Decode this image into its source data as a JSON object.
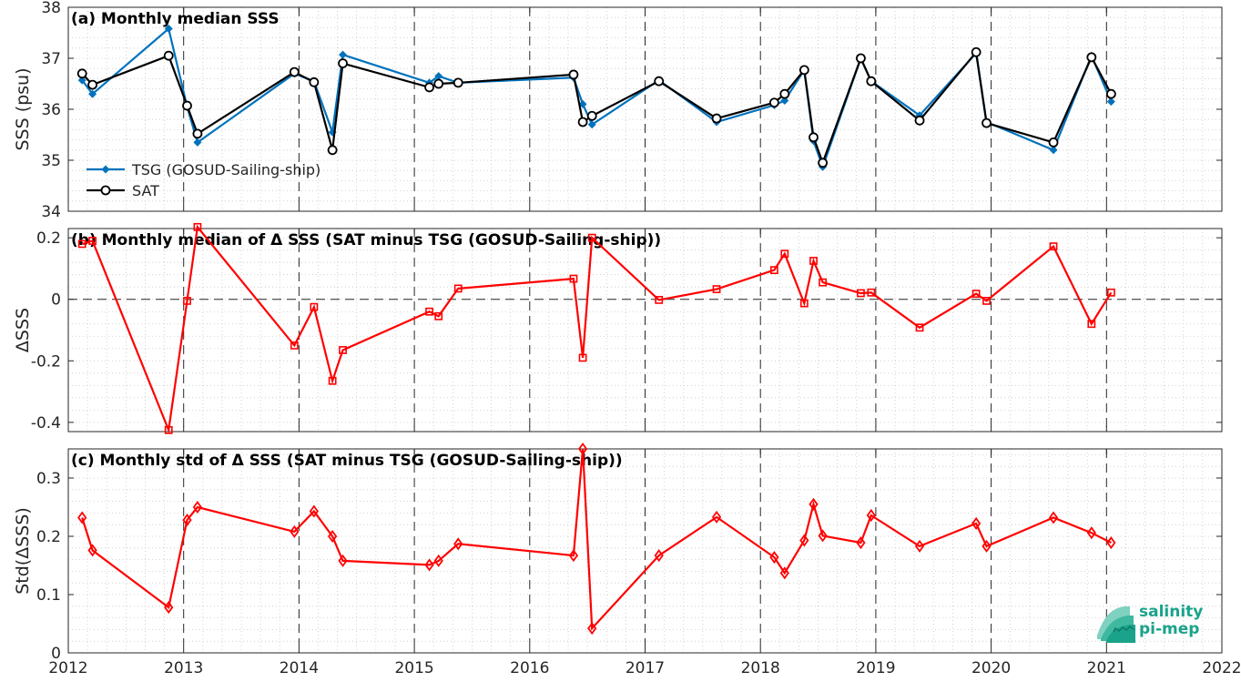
{
  "chart_data": [
    {
      "type": "line",
      "title": "(a) Monthly median SSS",
      "xlabel": "",
      "ylabel": "SSS (psu)",
      "xlim": [
        2012,
        2022
      ],
      "ylim": [
        34,
        38
      ],
      "yticks": [
        34,
        35,
        36,
        37,
        38
      ],
      "grid": true,
      "legend": "lower-left",
      "series": [
        {
          "name": "TSG (GOSUD-Sailing-ship)",
          "color": "#0072BD",
          "marker": "dot",
          "x": [
            2012.12,
            2012.21,
            2012.87,
            2013.03,
            2013.12,
            2013.96,
            2014.13,
            2014.29,
            2014.38,
            2015.13,
            2015.21,
            2015.38,
            2016.38,
            2016.46,
            2016.54,
            2017.12,
            2017.62,
            2018.12,
            2018.21,
            2018.38,
            2018.46,
            2018.54,
            2018.87,
            2018.96,
            2019.38,
            2019.87,
            2019.96,
            2020.54,
            2020.87,
            2021.04
          ],
          "y": [
            36.57,
            36.3,
            37.58,
            36.05,
            35.35,
            36.7,
            36.55,
            35.55,
            37.07,
            36.52,
            36.65,
            36.52,
            36.62,
            36.1,
            35.7,
            36.57,
            35.75,
            36.08,
            36.17,
            36.77,
            35.38,
            34.87,
            37.0,
            36.55,
            35.88,
            37.1,
            35.75,
            35.2,
            37.05,
            36.15
          ]
        },
        {
          "name": "SAT",
          "color": "#000000",
          "marker": "circle",
          "x": [
            2012.12,
            2012.21,
            2012.87,
            2013.03,
            2013.12,
            2013.96,
            2014.13,
            2014.29,
            2014.38,
            2015.13,
            2015.21,
            2015.38,
            2016.38,
            2016.46,
            2016.54,
            2017.12,
            2017.62,
            2018.12,
            2018.21,
            2018.38,
            2018.46,
            2018.54,
            2018.87,
            2018.96,
            2019.38,
            2019.87,
            2019.96,
            2020.54,
            2020.87,
            2021.04
          ],
          "y": [
            36.7,
            36.48,
            37.05,
            36.07,
            35.52,
            36.73,
            36.53,
            35.2,
            36.9,
            36.43,
            36.5,
            36.52,
            36.68,
            35.75,
            35.87,
            36.55,
            35.82,
            36.13,
            36.3,
            36.77,
            35.45,
            34.95,
            37.0,
            36.55,
            35.78,
            37.12,
            35.73,
            35.35,
            37.02,
            36.3
          ]
        }
      ]
    },
    {
      "type": "line",
      "title": "(b) Monthly median of Δ SSS (SAT minus TSG (GOSUD-Sailing-ship))",
      "xlabel": "",
      "ylabel": "ΔSSS",
      "xlim": [
        2012,
        2022
      ],
      "ylim": [
        -0.43,
        0.23
      ],
      "yticks": [
        -0.4,
        -0.2,
        0,
        0.2
      ],
      "ytick_labels": [
        "-0.4",
        "-0.2",
        "0",
        "0.2"
      ],
      "grid": true,
      "zero_line": true,
      "series": [
        {
          "color": "#FF0000",
          "marker": "square",
          "x": [
            2012.12,
            2012.21,
            2012.87,
            2013.03,
            2013.12,
            2013.96,
            2014.13,
            2014.29,
            2014.38,
            2015.13,
            2015.21,
            2015.38,
            2016.38,
            2016.46,
            2016.54,
            2017.12,
            2017.62,
            2018.12,
            2018.21,
            2018.38,
            2018.46,
            2018.54,
            2018.87,
            2018.96,
            2019.38,
            2019.87,
            2019.96,
            2020.54,
            2020.87,
            2021.04
          ],
          "y": [
            0.18,
            0.19,
            -0.425,
            -0.005,
            0.235,
            -0.15,
            -0.025,
            -0.265,
            -0.165,
            -0.04,
            -0.055,
            0.035,
            0.067,
            -0.19,
            0.2,
            -0.002,
            0.033,
            0.095,
            0.148,
            -0.013,
            0.125,
            0.055,
            0.02,
            0.022,
            -0.092,
            0.018,
            -0.005,
            0.172,
            -0.08,
            0.022
          ]
        }
      ]
    },
    {
      "type": "line",
      "title": "(c) Monthly std of Δ SSS (SAT minus TSG (GOSUD-Sailing-ship))",
      "xlabel": "",
      "ylabel": "Std(ΔSSS)",
      "xlim": [
        2012,
        2022
      ],
      "ylim": [
        0,
        0.35
      ],
      "yticks": [
        0,
        0.1,
        0.2,
        0.3
      ],
      "ytick_labels": [
        "0",
        "0.1",
        "0.2",
        "0.3"
      ],
      "xticks": [
        2012,
        2013,
        2014,
        2015,
        2016,
        2017,
        2018,
        2019,
        2020,
        2021,
        2022
      ],
      "grid": true,
      "series": [
        {
          "color": "#FF0000",
          "marker": "diamond",
          "x": [
            2012.12,
            2012.21,
            2012.87,
            2013.03,
            2013.12,
            2013.96,
            2014.13,
            2014.29,
            2014.38,
            2015.13,
            2015.21,
            2015.38,
            2016.38,
            2016.46,
            2016.54,
            2017.12,
            2017.62,
            2018.12,
            2018.21,
            2018.38,
            2018.46,
            2018.54,
            2018.87,
            2018.96,
            2019.38,
            2019.87,
            2019.96,
            2020.54,
            2020.87,
            2021.04
          ],
          "y": [
            0.232,
            0.176,
            0.078,
            0.228,
            0.25,
            0.208,
            0.243,
            0.2,
            0.158,
            0.151,
            0.158,
            0.187,
            0.167,
            0.35,
            0.042,
            0.167,
            0.233,
            0.164,
            0.137,
            0.193,
            0.255,
            0.201,
            0.189,
            0.236,
            0.183,
            0.222,
            0.183,
            0.232,
            0.206,
            0.189
          ]
        }
      ]
    }
  ],
  "logo": {
    "line1": "salinity",
    "line2": "pi-mep",
    "color": "#1aa38a"
  }
}
